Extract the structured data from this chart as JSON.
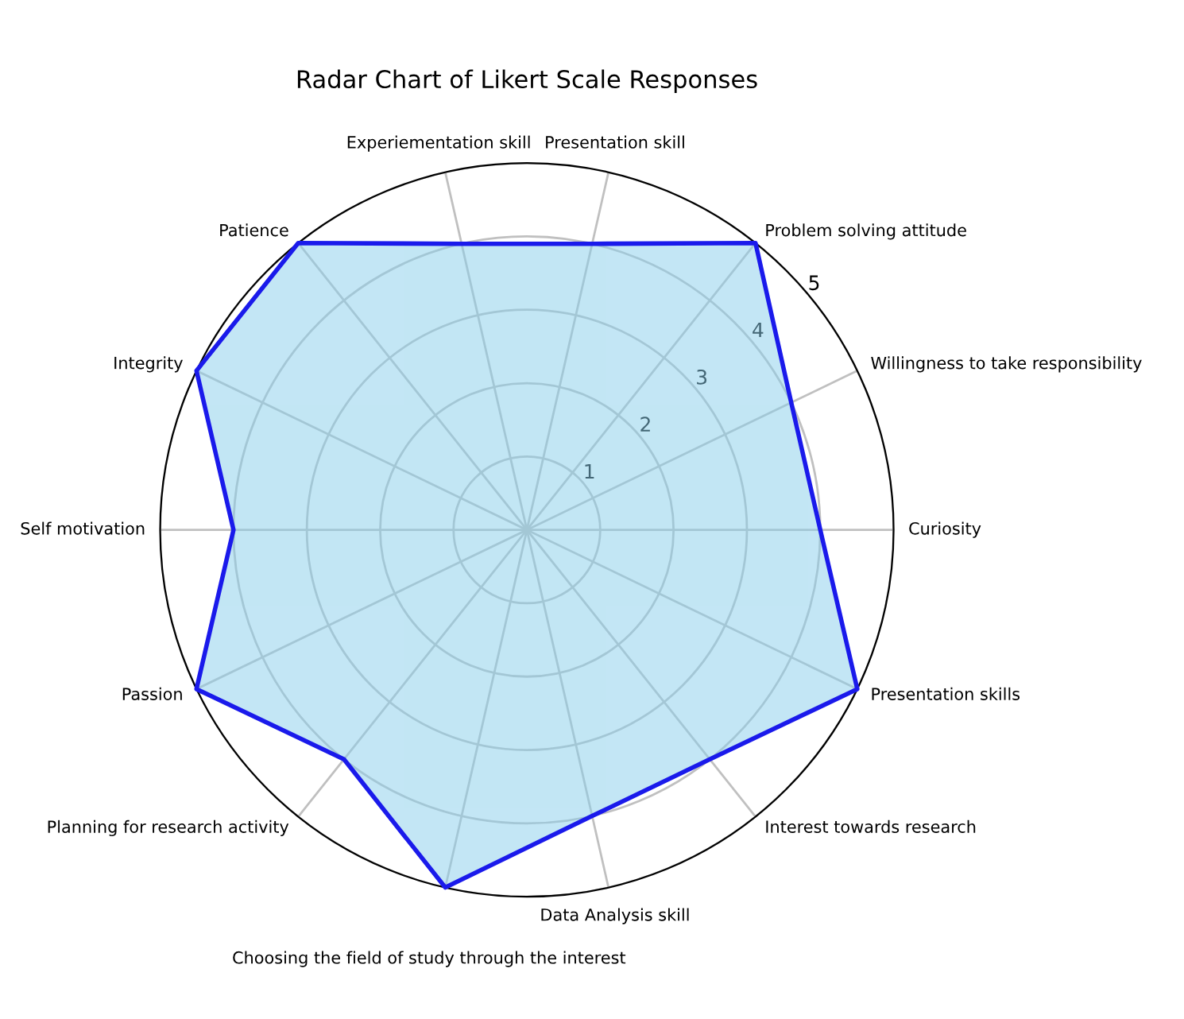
{
  "chart_data": {
    "type": "radar",
    "title": "Radar Chart of Likert Scale Responses",
    "categories": [
      "Presentation skill",
      "Problem solving attitude",
      "Willingness to take responsibility",
      "Curiosity",
      "Presentation skills",
      "Interest towards research",
      "Data Analysis skill",
      "Choosing the field of study through the interest",
      "Planning for research activity",
      "Passion",
      "Self motivation",
      "Integrity",
      "Patience",
      "Experiementation skill"
    ],
    "series": [
      {
        "color": "#1a1aeb",
        "values": [
          4,
          5,
          4,
          4,
          5,
          4,
          4,
          5,
          4,
          5,
          4,
          5,
          5,
          4
        ]
      }
    ],
    "ylim": [
      0,
      5
    ],
    "yticks": [
      1,
      2,
      3,
      4,
      5
    ],
    "grid": true,
    "marker": "none",
    "line_style": "solid"
  }
}
